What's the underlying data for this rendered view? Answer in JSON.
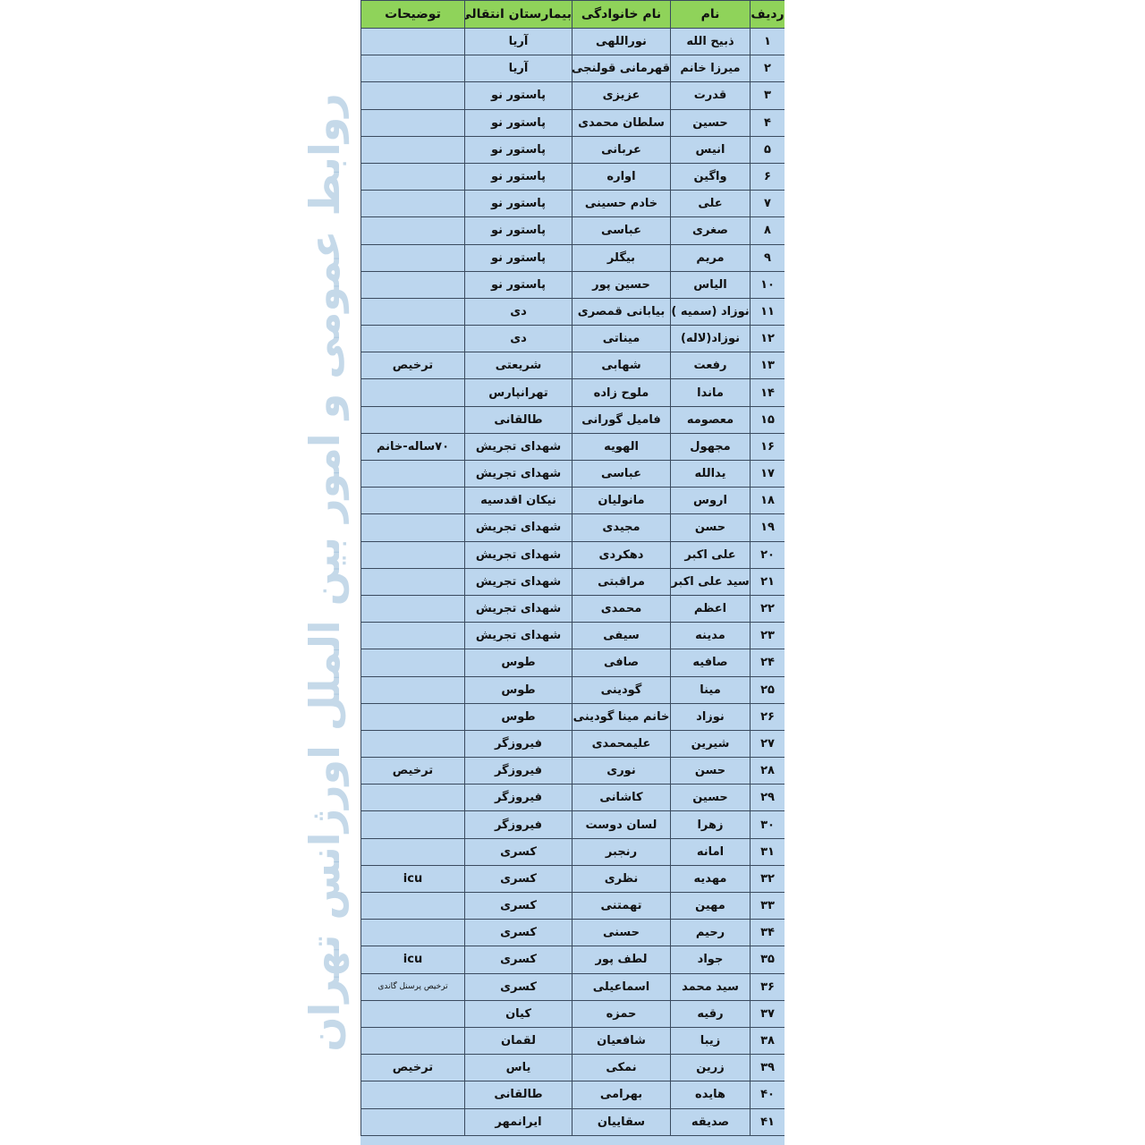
{
  "watermark": "روابط عمومی و امور بین الملل اورژانس تهران",
  "colors": {
    "header_bg": "#8fd35a",
    "row_bg": "#bcd6ee",
    "border": "#3a4a5e"
  },
  "headers": [
    "ردیف",
    "نام",
    "نام خانوادگی",
    "بیمارستان انتقالی",
    "توضیحات"
  ],
  "rows": [
    [
      "۱",
      "ذبیح الله",
      "نوراللهی",
      "آریا",
      ""
    ],
    [
      "۲",
      "میرزا خانم",
      "قهرمانی قولنجی",
      "آریا",
      ""
    ],
    [
      "۳",
      "قدرت",
      "عزیزی",
      "پاستور نو",
      ""
    ],
    [
      "۴",
      "حسین",
      "سلطان محمدی",
      "پاستور نو",
      ""
    ],
    [
      "۵",
      "انیس",
      "عربانی",
      "پاستور نو",
      ""
    ],
    [
      "۶",
      "واگین",
      "اواره",
      "پاستور نو",
      ""
    ],
    [
      "۷",
      "علی",
      "خادم حسینی",
      "پاستور نو",
      ""
    ],
    [
      "۸",
      "صغری",
      "عباسی",
      "پاستور نو",
      ""
    ],
    [
      "۹",
      "مریم",
      "بیگلر",
      "پاستور نو",
      ""
    ],
    [
      "۱۰",
      "الیاس",
      "حسین پور",
      "پاستور نو",
      ""
    ],
    [
      "۱۱",
      "نوزاد (سمیه )",
      "بیابانی قمصری",
      "دی",
      ""
    ],
    [
      "۱۲",
      "نوزاد(لاله)",
      "میناتی",
      "دی",
      ""
    ],
    [
      "۱۳",
      "رفعت",
      "شهابی",
      "شریعتی",
      "ترخیص"
    ],
    [
      "۱۴",
      "ماندا",
      "ملوح زاده",
      "تهرانپارس",
      ""
    ],
    [
      "۱۵",
      "معصومه",
      "فامیل گورانی",
      "طالقانی",
      ""
    ],
    [
      "۱۶",
      "مجهول",
      "الهویه",
      "شهدای تجریش",
      "۷۰ساله-خانم"
    ],
    [
      "۱۷",
      "یدالله",
      "عباسی",
      "شهدای تجریش",
      ""
    ],
    [
      "۱۸",
      "اروس",
      "مانولیان",
      "نیکان اقدسیه",
      ""
    ],
    [
      "۱۹",
      "حسن",
      "مجیدی",
      "شهدای تجریش",
      ""
    ],
    [
      "۲۰",
      "علی اکبر",
      "دهکردی",
      "شهدای تجریش",
      ""
    ],
    [
      "۲۱",
      "سید علی اکبر",
      "مراقبتی",
      "شهدای تجریش",
      ""
    ],
    [
      "۲۲",
      "اعظم",
      "محمدی",
      "شهدای تجریش",
      ""
    ],
    [
      "۲۳",
      "مدینه",
      "سیفی",
      "شهدای تجریش",
      ""
    ],
    [
      "۲۴",
      "صافیه",
      "صافی",
      "طوس",
      ""
    ],
    [
      "۲۵",
      "مینا",
      "گودینی",
      "طوس",
      ""
    ],
    [
      "۲۶",
      "نوزاد",
      "خانم مینا گودینی",
      "طوس",
      ""
    ],
    [
      "۲۷",
      "شیرین",
      "علیمحمدی",
      "فیروزگر",
      ""
    ],
    [
      "۲۸",
      "حسن",
      "نوری",
      "فیروزگر",
      "ترخیص"
    ],
    [
      "۲۹",
      "حسین",
      "کاشانی",
      "فیروزگر",
      ""
    ],
    [
      "۳۰",
      "زهرا",
      "لسان دوست",
      "فیروزگر",
      ""
    ],
    [
      "۳۱",
      "امانه",
      "رنجبر",
      "کسری",
      ""
    ],
    [
      "۳۲",
      "مهدیه",
      "نظری",
      "کسری",
      "icu"
    ],
    [
      "۳۳",
      "مهین",
      "تهمتنی",
      "کسری",
      ""
    ],
    [
      "۳۴",
      "رحیم",
      "حسنی",
      "کسری",
      ""
    ],
    [
      "۳۵",
      "جواد",
      "لطف پور",
      "کسری",
      "icu"
    ],
    [
      "۳۶",
      "سید محمد",
      "اسماعیلی",
      "کسری",
      "ترخیص  پرسنل گاندی"
    ],
    [
      "۳۷",
      "رقیه",
      "حمزه",
      "کیان",
      ""
    ],
    [
      "۳۸",
      "زیبا",
      "شافعیان",
      "لقمان",
      ""
    ],
    [
      "۳۹",
      "زرین",
      "نمکی",
      "یاس",
      "ترخیص"
    ],
    [
      "۴۰",
      "هایده",
      "بهرامی",
      "طالقانی",
      ""
    ],
    [
      "۴۱",
      "صدیقه",
      "سقاییان",
      "ایرانمهر",
      ""
    ]
  ]
}
